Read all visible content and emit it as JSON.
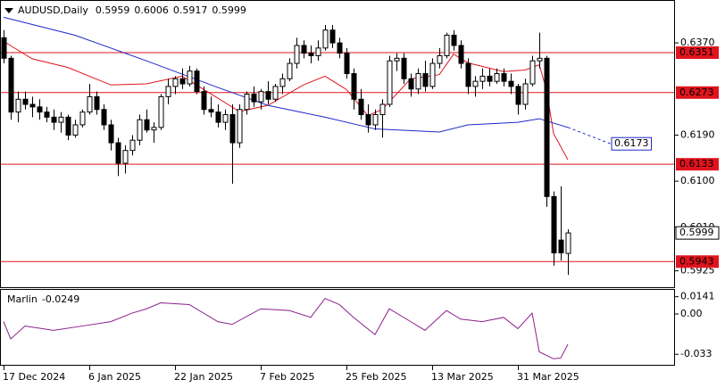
{
  "chart_data": [
    {
      "type": "candlestick",
      "title": "AUDUSD,Daily",
      "categories": [
        "17 Dec 2024",
        null,
        null,
        null,
        null,
        null,
        null,
        null,
        null,
        null,
        null,
        null,
        "6 Jan 2025",
        null,
        null,
        null,
        null,
        null,
        null,
        null,
        null,
        null,
        null,
        null,
        "22 Jan 2025",
        null,
        null,
        null,
        null,
        null,
        null,
        null,
        null,
        null,
        null,
        null,
        "7 Feb 2025",
        null,
        null,
        null,
        null,
        null,
        null,
        null,
        null,
        null,
        null,
        null,
        "25 Feb 2025",
        null,
        null,
        null,
        null,
        null,
        null,
        null,
        null,
        null,
        null,
        null,
        "13 Mar 2025",
        null,
        null,
        null,
        null,
        null,
        null,
        null,
        null,
        null,
        null,
        null,
        "31 Mar 2025",
        null,
        null,
        null,
        null,
        null,
        null,
        null
      ],
      "open": [
        0.638,
        0.634,
        0.6235,
        0.626,
        0.625,
        0.6245,
        0.6235,
        0.6225,
        0.6215,
        0.6225,
        0.619,
        0.621,
        0.6235,
        0.6265,
        0.624,
        0.621,
        0.6175,
        0.6135,
        0.616,
        0.618,
        0.622,
        0.62,
        0.6205,
        0.6265,
        0.6285,
        0.63,
        0.629,
        0.6315,
        0.6275,
        0.624,
        0.6235,
        0.6215,
        0.623,
        0.6175,
        0.624,
        0.627,
        0.6255,
        0.6275,
        0.626,
        0.6285,
        0.63,
        0.633,
        0.6365,
        0.635,
        0.6345,
        0.636,
        0.6395,
        0.637,
        0.635,
        0.631,
        0.626,
        0.623,
        0.621,
        0.623,
        0.625,
        0.6335,
        0.634,
        0.63,
        0.628,
        0.631,
        0.6285,
        0.633,
        0.6345,
        0.6385,
        0.6365,
        0.633,
        0.6285,
        0.6295,
        0.6305,
        0.6295,
        0.631,
        0.6295,
        0.6285,
        0.625,
        0.629,
        0.6335,
        0.634,
        0.607,
        0.5985,
        0.5959
      ],
      "high": [
        0.6395,
        0.6345,
        0.6275,
        0.6275,
        0.6265,
        0.626,
        0.6245,
        0.624,
        0.6235,
        0.623,
        0.622,
        0.624,
        0.629,
        0.6275,
        0.625,
        0.622,
        0.6185,
        0.617,
        0.619,
        0.623,
        0.624,
        0.6215,
        0.627,
        0.63,
        0.6305,
        0.632,
        0.6325,
        0.632,
        0.6285,
        0.6265,
        0.625,
        0.624,
        0.625,
        0.625,
        0.6275,
        0.6285,
        0.628,
        0.6295,
        0.629,
        0.631,
        0.634,
        0.638,
        0.6375,
        0.6365,
        0.6375,
        0.6405,
        0.6405,
        0.638,
        0.636,
        0.632,
        0.628,
        0.625,
        0.624,
        0.626,
        0.6345,
        0.635,
        0.635,
        0.631,
        0.632,
        0.6335,
        0.634,
        0.636,
        0.639,
        0.6395,
        0.6375,
        0.634,
        0.6305,
        0.632,
        0.632,
        0.632,
        0.632,
        0.631,
        0.629,
        0.63,
        0.6345,
        0.639,
        0.6345,
        0.608,
        0.609,
        0.6006
      ],
      "low": [
        0.633,
        0.622,
        0.6215,
        0.624,
        0.6225,
        0.622,
        0.6215,
        0.62,
        0.6195,
        0.618,
        0.6185,
        0.6205,
        0.623,
        0.623,
        0.62,
        0.616,
        0.611,
        0.6115,
        0.615,
        0.617,
        0.6195,
        0.6175,
        0.62,
        0.625,
        0.627,
        0.628,
        0.6285,
        0.627,
        0.623,
        0.6225,
        0.6205,
        0.62,
        0.6095,
        0.6165,
        0.623,
        0.6245,
        0.624,
        0.625,
        0.6255,
        0.627,
        0.6295,
        0.632,
        0.634,
        0.633,
        0.6335,
        0.6355,
        0.636,
        0.634,
        0.63,
        0.624,
        0.622,
        0.6195,
        0.62,
        0.6185,
        0.6245,
        0.6315,
        0.629,
        0.6265,
        0.627,
        0.6275,
        0.628,
        0.632,
        0.634,
        0.6355,
        0.632,
        0.627,
        0.6265,
        0.628,
        0.6285,
        0.629,
        0.6285,
        0.627,
        0.623,
        0.624,
        0.6285,
        0.632,
        0.605,
        0.5935,
        0.5945,
        0.5917
      ],
      "close": [
        0.634,
        0.6235,
        0.626,
        0.625,
        0.6245,
        0.6235,
        0.6225,
        0.6215,
        0.6225,
        0.619,
        0.621,
        0.6235,
        0.6265,
        0.624,
        0.621,
        0.6175,
        0.6135,
        0.616,
        0.618,
        0.622,
        0.62,
        0.6205,
        0.6265,
        0.6285,
        0.63,
        0.629,
        0.6315,
        0.6275,
        0.624,
        0.6235,
        0.6215,
        0.623,
        0.6175,
        0.624,
        0.627,
        0.6255,
        0.6275,
        0.626,
        0.6285,
        0.63,
        0.633,
        0.6365,
        0.635,
        0.6345,
        0.636,
        0.6395,
        0.637,
        0.635,
        0.631,
        0.626,
        0.623,
        0.621,
        0.623,
        0.625,
        0.6335,
        0.634,
        0.63,
        0.628,
        0.631,
        0.6285,
        0.633,
        0.6345,
        0.6385,
        0.6365,
        0.633,
        0.6285,
        0.6295,
        0.6305,
        0.6295,
        0.631,
        0.6295,
        0.6285,
        0.625,
        0.629,
        0.6335,
        0.634,
        0.607,
        0.596,
        0.596,
        0.5999
      ],
      "series": [
        {
          "color": "#e0141e",
          "x": [
            0,
            4,
            9,
            15,
            20,
            25,
            30,
            33,
            37,
            42,
            45,
            48,
            51,
            53,
            57,
            61,
            63,
            65,
            70,
            73,
            75,
            76,
            77,
            79
          ],
          "values": [
            0.6373,
            0.6339,
            0.6322,
            0.6288,
            0.629,
            0.6305,
            0.6262,
            0.6236,
            0.6248,
            0.6288,
            0.6305,
            0.6279,
            0.6228,
            0.624,
            0.63,
            0.6308,
            0.6348,
            0.6331,
            0.6314,
            0.6317,
            0.6327,
            0.6279,
            0.6193,
            0.6142
          ]
        },
        {
          "color": "#1e28c8",
          "x": [
            0,
            10,
            20,
            30,
            37,
            45,
            52,
            61,
            65,
            72,
            75,
            79
          ],
          "values": [
            0.642,
            0.6385,
            0.6335,
            0.6283,
            0.6248,
            0.6225,
            0.6202,
            0.6196,
            0.621,
            0.6215,
            0.6222,
            0.6205
          ]
        }
      ],
      "projection": {
        "x": 85,
        "value": 0.6173
      },
      "levels": [
        0.6351,
        0.6273,
        0.6133,
        0.5943
      ],
      "level_color": "#e0141e",
      "ylim": [
        0.5893,
        0.6452
      ],
      "yticks": [
        {
          "value": 0.637,
          "label": "0.6370"
        },
        {
          "value": 0.619,
          "label": "0.6190"
        },
        {
          "value": 0.61,
          "label": "0.6100"
        },
        {
          "value": 0.601,
          "label": "0.6010"
        },
        0.5925
      ]
    },
    {
      "type": "line",
      "title": "Marlin",
      "color": "#8c1e8c",
      "x": [
        0,
        1,
        3,
        7,
        11,
        15,
        18,
        20,
        22,
        26,
        30,
        32,
        36,
        40,
        43,
        45,
        47,
        49,
        52,
        54,
        57,
        59,
        62,
        64,
        67,
        70,
        72,
        74,
        75,
        77,
        78,
        79
      ],
      "values": [
        -0.0063,
        -0.0204,
        -0.0099,
        -0.0134,
        -0.0099,
        -0.0063,
        0.0007,
        0.0042,
        0.0091,
        0.0077,
        -0.0063,
        -0.0085,
        0.0042,
        0.0028,
        -0.0028,
        0.0127,
        0.0077,
        -0.0028,
        -0.0169,
        0.0042,
        -0.0063,
        -0.0134,
        0.0028,
        -0.0042,
        -0.0063,
        -0.0028,
        -0.012,
        0.0007,
        -0.031,
        -0.0367,
        -0.036,
        -0.0249
      ],
      "ylim": [
        -0.0416,
        0.0197
      ],
      "yticks": [
        0.0141,
        {
          "value": 0,
          "label": "0.00"
        },
        -0.033
      ]
    }
  ]
}
